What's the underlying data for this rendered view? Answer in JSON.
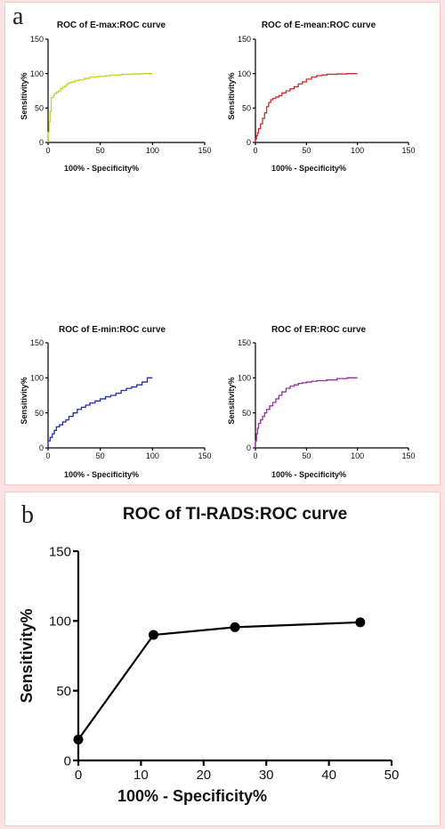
{
  "panels": {
    "a_label": "a",
    "b_label": "b"
  },
  "chart_data": [
    {
      "type": "line",
      "panel": "a",
      "title": "ROC of E-max:ROC curve",
      "xlabel": "100% - Specificity%",
      "ylabel": "Sensitivity%",
      "xlim": [
        0,
        150
      ],
      "ylim": [
        0,
        150
      ],
      "xticks": [
        0,
        50,
        100,
        150
      ],
      "yticks": [
        0,
        50,
        100,
        150
      ],
      "color": "#c6d12a",
      "step": true,
      "series": [
        {
          "x": [
            0,
            0,
            1,
            1,
            2,
            2,
            3,
            3,
            5,
            6,
            8,
            10,
            12,
            14,
            16,
            18,
            20,
            23,
            26,
            30,
            35,
            40,
            48,
            55,
            60,
            70,
            80,
            90,
            100
          ],
          "y": [
            0,
            15,
            15,
            30,
            30,
            45,
            45,
            55,
            65,
            68,
            71,
            73,
            75,
            78,
            80,
            82,
            85,
            87,
            88,
            90,
            91,
            93,
            95,
            96,
            97,
            98,
            99,
            99.5,
            100
          ]
        }
      ]
    },
    {
      "type": "line",
      "panel": "a",
      "title": "ROC of E-mean:ROC curve",
      "xlabel": "100% - Specificity%",
      "ylabel": "Sensitivity%",
      "xlim": [
        0,
        150
      ],
      "ylim": [
        0,
        150
      ],
      "xticks": [
        0,
        50,
        100,
        150
      ],
      "yticks": [
        0,
        50,
        100,
        150
      ],
      "color": "#d02a2a",
      "step": true,
      "series": [
        {
          "x": [
            0,
            1,
            2,
            3,
            5,
            7,
            9,
            11,
            13,
            15,
            17,
            20,
            23,
            26,
            30,
            34,
            38,
            42,
            46,
            50,
            55,
            60,
            65,
            70,
            80,
            90,
            100
          ],
          "y": [
            0,
            5,
            10,
            14,
            20,
            27,
            35,
            43,
            52,
            58,
            62,
            64,
            66,
            68,
            72,
            75,
            78,
            81,
            85,
            88,
            92,
            95,
            97,
            98,
            99,
            99.5,
            100
          ]
        }
      ]
    },
    {
      "type": "line",
      "panel": "a",
      "title": "ROC of E-min:ROC curve",
      "xlabel": "100% - Specificity%",
      "ylabel": "Sensitivity%",
      "xlim": [
        0,
        150
      ],
      "ylim": [
        0,
        150
      ],
      "xticks": [
        0,
        50,
        100,
        150
      ],
      "yticks": [
        0,
        50,
        100,
        150
      ],
      "color": "#1f2fa8",
      "step": true,
      "series": [
        {
          "x": [
            0,
            2,
            4,
            6,
            8,
            11,
            14,
            17,
            20,
            24,
            28,
            32,
            36,
            40,
            45,
            50,
            55,
            60,
            65,
            70,
            75,
            80,
            85,
            90,
            95,
            100
          ],
          "y": [
            0,
            10,
            15,
            20,
            25,
            30,
            33,
            37,
            40,
            45,
            50,
            55,
            58,
            61,
            64,
            67,
            70,
            73,
            75,
            78,
            82,
            85,
            87,
            90,
            94,
            100
          ]
        }
      ]
    },
    {
      "type": "line",
      "panel": "a",
      "title": "ROC of ER:ROC curve",
      "xlabel": "100% - Specificity%",
      "ylabel": "Sensitivity%",
      "xlim": [
        0,
        150
      ],
      "ylim": [
        0,
        150
      ],
      "xticks": [
        0,
        50,
        100,
        150
      ],
      "yticks": [
        0,
        50,
        100,
        150
      ],
      "color": "#9b2aa3",
      "step": true,
      "series": [
        {
          "x": [
            0,
            1,
            2,
            3,
            5,
            7,
            9,
            11,
            14,
            17,
            20,
            23,
            26,
            30,
            34,
            38,
            42,
            46,
            50,
            55,
            60,
            70,
            80,
            90,
            100
          ],
          "y": [
            0,
            10,
            20,
            28,
            35,
            40,
            45,
            50,
            55,
            60,
            65,
            70,
            75,
            80,
            85,
            88,
            90,
            92,
            93,
            94,
            95,
            96,
            97,
            99,
            100
          ]
        }
      ]
    },
    {
      "type": "line",
      "panel": "b",
      "title": "ROC of TI-RADS:ROC curve",
      "xlabel": "100% - Specificity%",
      "ylabel": "Sensitivity%",
      "xlim": [
        0,
        50
      ],
      "ylim": [
        0,
        150
      ],
      "xticks": [
        0,
        10,
        20,
        30,
        40,
        50
      ],
      "yticks": [
        0,
        50,
        100,
        150
      ],
      "color": "#000000",
      "step": false,
      "markers": true,
      "series": [
        {
          "x": [
            0,
            12,
            25,
            45
          ],
          "y": [
            15,
            90,
            95.5,
            99
          ]
        }
      ]
    }
  ]
}
